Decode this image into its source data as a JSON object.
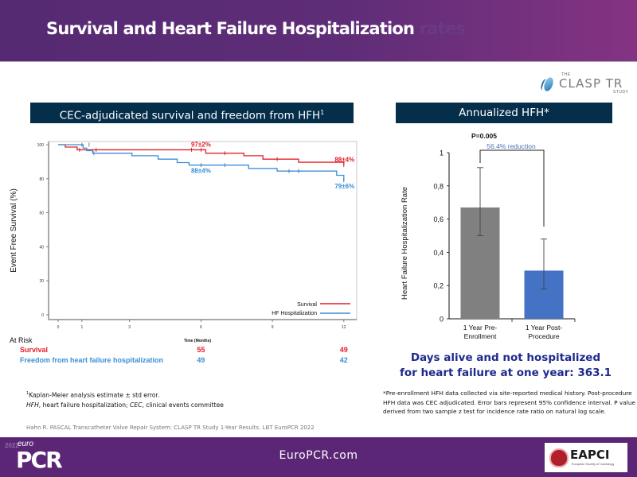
{
  "header": {
    "title": "Survival and Heart Failure Hospitalization",
    "title_ghost": "rates"
  },
  "logo": {
    "the": "THE",
    "name": "CLASP TR",
    "study": "STUDY"
  },
  "km_panel": {
    "header": "CEC-adjudicated survival and freedom from HFH",
    "header_sup": "1"
  },
  "bar_panel": {
    "header": "Annualized HFH*"
  },
  "colors": {
    "survival": "#e3202a",
    "hfh": "#3b8fd6",
    "bar_pre": "#808080",
    "bar_post": "#4472c4",
    "header_bg": "#052e4b",
    "purple": "#5b2675",
    "days_text": "#1f2a8c"
  },
  "chart_data": [
    {
      "type": "line",
      "subtype": "kaplan-meier",
      "title": "CEC-adjudicated survival and freedom from HFH",
      "xlabel": "Time (Months)",
      "ylabel": "Event Free Survival (%)",
      "xlim": [
        0,
        12
      ],
      "ylim": [
        0,
        100
      ],
      "xticks": [
        0,
        1,
        3,
        6,
        9,
        12
      ],
      "yticks": [
        0,
        20,
        40,
        60,
        80,
        100
      ],
      "grid": false,
      "legend_position": "bottom-right",
      "series": [
        {
          "name": "Survival",
          "color": "#e3202a",
          "steps": [
            [
              0,
              100
            ],
            [
              0.3,
              98.6
            ],
            [
              0.8,
              97
            ],
            [
              6.2,
              95
            ],
            [
              7.8,
              93.5
            ],
            [
              8.6,
              91.5
            ],
            [
              10.1,
              89.7
            ],
            [
              12,
              88
            ]
          ],
          "censor_marks": [
            [
              0.9,
              97
            ],
            [
              1.6,
              97
            ],
            [
              5.6,
              97
            ],
            [
              6.0,
              97
            ],
            [
              7.0,
              95
            ],
            [
              9.2,
              91.5
            ],
            [
              12,
              88
            ]
          ],
          "annotations": [
            {
              "x": 6,
              "y": 97,
              "label": "97±2%"
            },
            {
              "x": 12,
              "y": 88,
              "label": "88±4%"
            }
          ]
        },
        {
          "name": "HF Hospitalization",
          "color": "#3b8fd6",
          "steps": [
            [
              0,
              100
            ],
            [
              1.05,
              98
            ],
            [
              1.2,
              96.5
            ],
            [
              1.45,
              95
            ],
            [
              3.1,
              93.5
            ],
            [
              4.2,
              91.5
            ],
            [
              5.0,
              89.5
            ],
            [
              5.5,
              88
            ],
            [
              8.0,
              86
            ],
            [
              9.2,
              84.5
            ],
            [
              11.7,
              82
            ],
            [
              12,
              79
            ]
          ],
          "censor_marks": [
            [
              1.0,
              100
            ],
            [
              1.3,
              100
            ],
            [
              1.5,
              95
            ],
            [
              6.0,
              88
            ],
            [
              7.0,
              88
            ],
            [
              9.7,
              84.5
            ],
            [
              10.1,
              84.5
            ],
            [
              12,
              79
            ]
          ],
          "annotations": [
            {
              "x": 6,
              "y": 88,
              "label": "88±4%"
            },
            {
              "x": 12,
              "y": 79,
              "label": "79±6%"
            }
          ]
        }
      ],
      "at_risk": {
        "label": "At Risk",
        "time_label": "Time (Months)",
        "rows": [
          {
            "name": "Survival",
            "color": "#e3202a",
            "values": [
              {
                "x": 6,
                "n": "55"
              },
              {
                "x": 12,
                "n": "49"
              }
            ]
          },
          {
            "name": "Freedom from heart failure hospitalization",
            "color": "#3b8fd6",
            "values": [
              {
                "x": 6,
                "n": "49"
              },
              {
                "x": 12,
                "n": "42"
              }
            ]
          }
        ]
      }
    },
    {
      "type": "bar",
      "title": "Annualized HFH*",
      "categories": [
        "1 Year Pre-Enrollment",
        "1 Year Post-Procedure"
      ],
      "category_lines": [
        [
          "1 Year Pre-",
          "Enrollment"
        ],
        [
          "1 Year Post-",
          "Procedure"
        ]
      ],
      "values": [
        0.67,
        0.29
      ],
      "error_low": [
        0.5,
        0.18
      ],
      "error_high": [
        0.91,
        0.48
      ],
      "colors": [
        "#808080",
        "#4472c4"
      ],
      "ylabel": "Heart Failure Hospitalization Rate",
      "ylim": [
        0,
        1
      ],
      "yticks": [
        "0",
        "0,2",
        "0,4",
        "0,6",
        "0,8",
        "1"
      ],
      "ytick_values": [
        0,
        0.2,
        0.4,
        0.6,
        0.8,
        1
      ],
      "annotations": {
        "p_value": "P=0.005",
        "reduction": "56.4% reduction"
      },
      "grid": false
    }
  ],
  "days_alive": {
    "line1": "Days alive and not hospitalized",
    "line2": "for heart failure at one year: 363.1"
  },
  "footnotes": {
    "left_1_sup": "1",
    "left_1": "Kaplan-Meier analysis estimate ± std error.",
    "left_2_abbr1": "HFH",
    "left_2_def1": ", heart failure hospitalization;  ",
    "left_2_abbr2": "CEC",
    "left_2_def2": ", clinical  events committee",
    "right": "*Pre-enrollment  HFH data collected  via site-reported  medical history. Post-procedure  HFH data was CEC adjudicated.  Error bars represent 95% confidence  interval.  P value derived  from two sample z test for incidence  rate ratio on natural log scale.",
    "citation": "Hahn R. PASCAL Transcatheter Valve Repair System: CLASP TR Study 1-Year Results. LBT EuroPCR 2022"
  },
  "footer": {
    "year": "2022",
    "euro": "euro",
    "pcr": "PCR",
    "url": "EuroPCR.com",
    "eapci": "EAPCI",
    "esc": "European Society of Cardiology"
  }
}
